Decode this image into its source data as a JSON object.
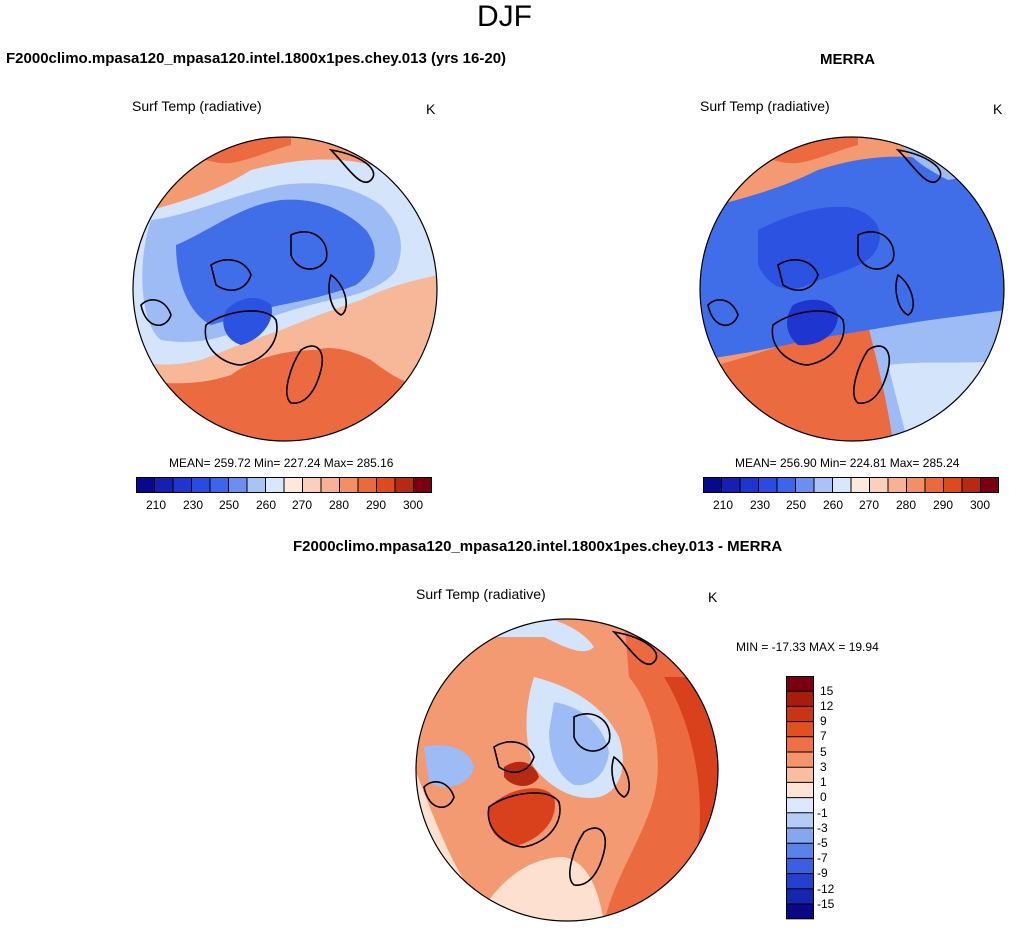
{
  "figure": {
    "season": "DJF",
    "colors": {
      "deep_blue": "#0a1a8c",
      "blue": "#2b52e0",
      "mid_blue": "#3f6ee8",
      "light_blue": "#9dbcf5",
      "pale_blue": "#d4e4fb",
      "pale_orange": "#fde0cf",
      "orange": "#f39a72",
      "red_orange": "#ec6a40",
      "red": "#d9401c",
      "dark_red": "#7a0010",
      "land_outline": "#000000"
    },
    "panels": {
      "model": {
        "title": "F2000climo.mpasa120_mpasa120.intel.1800x1pes.chey.013 (yrs 16-20)",
        "variable": "Surf Temp (radiative)",
        "units": "K",
        "stats": "MEAN= 259.72  Min= 227.24  Max= 285.16",
        "colorbar_ticks": [
          "210",
          "230",
          "250",
          "260",
          "270",
          "280",
          "290",
          "300"
        ]
      },
      "obs": {
        "title": "MERRA",
        "variable": "Surf Temp (radiative)",
        "units": "K",
        "stats": "MEAN= 256.90  Min= 224.81  Max= 285.24",
        "colorbar_ticks": [
          "210",
          "230",
          "250",
          "260",
          "270",
          "280",
          "290",
          "300"
        ]
      },
      "diff": {
        "title": "F2000climo.mpasa120_mpasa120.intel.1800x1pes.chey.013 - MERRA",
        "variable": "Surf Temp (radiative)",
        "units": "K",
        "stats": "MIN = -17.33 MAX =  19.94",
        "colorbar_ticks": [
          "15",
          "12",
          "9",
          "7",
          "5",
          "3",
          "1",
          "0",
          "-1",
          "-3",
          "-5",
          "-7",
          "-9",
          "-12",
          "-15"
        ]
      }
    }
  }
}
